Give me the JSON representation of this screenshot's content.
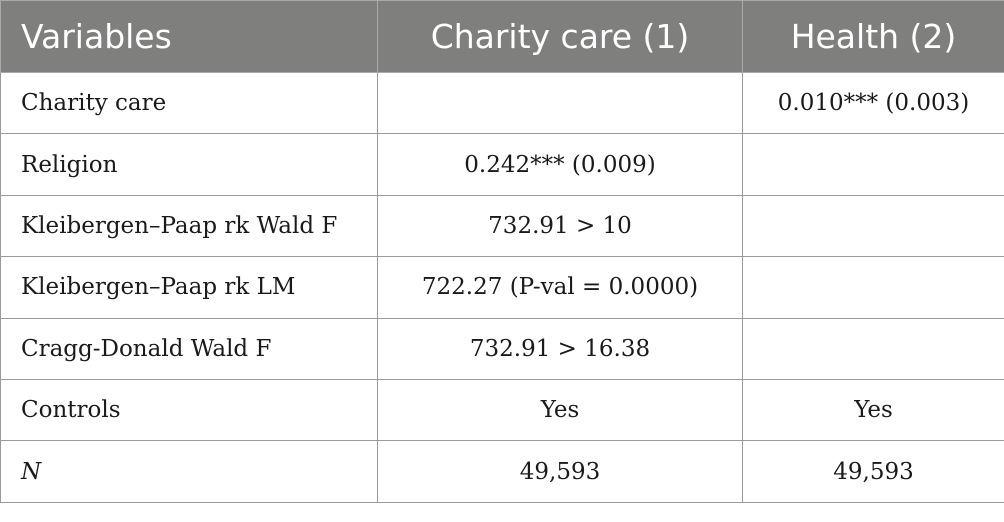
{
  "table": {
    "headers": [
      "Variables",
      "Charity care (1)",
      "Health (2)"
    ],
    "rows": [
      {
        "label": "Charity care",
        "col1": "",
        "col2": "0.010*** (0.003)"
      },
      {
        "label": "Religion",
        "col1": "0.242*** (0.009)",
        "col2": ""
      },
      {
        "label": "Kleibergen–Paap rk Wald F",
        "col1": "732.91 > 10",
        "col2": ""
      },
      {
        "label": "Kleibergen–Paap rk LM",
        "col1": "722.27 (P-val = 0.0000)",
        "col2": ""
      },
      {
        "label": "Cragg-Donald Wald F",
        "col1": "732.91 > 16.38",
        "col2": ""
      },
      {
        "label": "Controls",
        "col1": "Yes",
        "col2": "Yes"
      },
      {
        "label": "N",
        "col1": "49,593",
        "col2": "49,593"
      }
    ]
  },
  "colors": {
    "header_background": "#7f7f7d",
    "header_text": "#ffffff",
    "border": "#9a9a9a"
  }
}
